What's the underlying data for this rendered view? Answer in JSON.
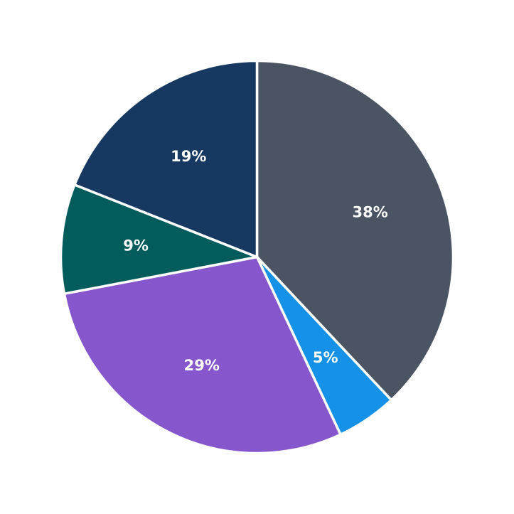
{
  "chart_data": {
    "type": "pie",
    "title": "",
    "start_angle_deg": 0,
    "direction": "clockwise",
    "legend": "none",
    "slices": [
      {
        "value": 38,
        "label": "38%",
        "color": "#4a5462"
      },
      {
        "value": 5,
        "label": "5%",
        "color": "#1591e8"
      },
      {
        "value": 29,
        "label": "29%",
        "color": "#8657cc"
      },
      {
        "value": 9,
        "label": "9%",
        "color": "#025c5c"
      },
      {
        "value": 19,
        "label": "19%",
        "color": "#163861"
      }
    ]
  }
}
